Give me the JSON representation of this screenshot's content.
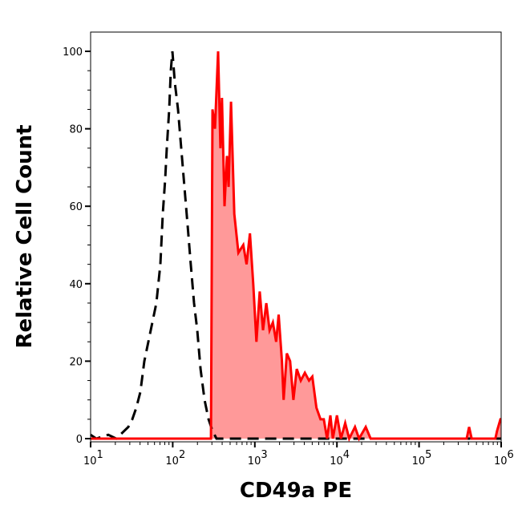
{
  "chart_data": {
    "type": "area",
    "xlabel": "CD49a PE",
    "ylabel": "Relative Cell Count",
    "x_scale": "log",
    "xlim": [
      10,
      1000000
    ],
    "ylim": [
      0,
      105
    ],
    "x_ticks": [
      {
        "value": 10,
        "base": "10",
        "exp": "1"
      },
      {
        "value": 100,
        "base": "10",
        "exp": "2"
      },
      {
        "value": 1000,
        "base": "10",
        "exp": "3"
      },
      {
        "value": 10000,
        "base": "10",
        "exp": "4"
      },
      {
        "value": 100000,
        "base": "10",
        "exp": "5"
      },
      {
        "value": 1000000,
        "base": "10",
        "exp": "6"
      }
    ],
    "y_ticks": [
      "0",
      "20",
      "40",
      "60",
      "80",
      "100"
    ],
    "grid": false,
    "series": [
      {
        "style": "dashed",
        "color": "#000000",
        "fill": "none",
        "points": [
          [
            10,
            1
          ],
          [
            11.7,
            0
          ],
          [
            16.4,
            1
          ],
          [
            20.5,
            0
          ],
          [
            23,
            1
          ],
          [
            28.8,
            3
          ],
          [
            32.2,
            5
          ],
          [
            36,
            8
          ],
          [
            40.3,
            12
          ],
          [
            45.1,
            20
          ],
          [
            50.5,
            25
          ],
          [
            56.5,
            30
          ],
          [
            63.2,
            35
          ],
          [
            70.8,
            45
          ],
          [
            75.7,
            58
          ],
          [
            81,
            67
          ],
          [
            84.7,
            75
          ],
          [
            90.6,
            85
          ],
          [
            94.8,
            95
          ],
          [
            99,
            100
          ],
          [
            106,
            92
          ],
          [
            116,
            85
          ],
          [
            127,
            75
          ],
          [
            139,
            65
          ],
          [
            152,
            55
          ],
          [
            166,
            45
          ],
          [
            182,
            35
          ],
          [
            199,
            28
          ],
          [
            218,
            18
          ],
          [
            244,
            10
          ],
          [
            273,
            5
          ],
          [
            305,
            2
          ],
          [
            341,
            0
          ],
          [
            1000000,
            0
          ]
        ]
      },
      {
        "style": "solid",
        "color": "#ff0000",
        "fill": "#ff9999",
        "points": [
          [
            10,
            0
          ],
          [
            292,
            0
          ],
          [
            305,
            85
          ],
          [
            327,
            80
          ],
          [
            357,
            100
          ],
          [
            381,
            75
          ],
          [
            398,
            88
          ],
          [
            427,
            60
          ],
          [
            457,
            73
          ],
          [
            479,
            65
          ],
          [
            513,
            87
          ],
          [
            562,
            58
          ],
          [
            631,
            48
          ],
          [
            724,
            50
          ],
          [
            794,
            45
          ],
          [
            871,
            53
          ],
          [
            955,
            40
          ],
          [
            1047,
            25
          ],
          [
            1148,
            38
          ],
          [
            1259,
            28
          ],
          [
            1380,
            35
          ],
          [
            1514,
            28
          ],
          [
            1660,
            30
          ],
          [
            1820,
            25
          ],
          [
            1950,
            32
          ],
          [
            2140,
            20
          ],
          [
            2240,
            10
          ],
          [
            2455,
            22
          ],
          [
            2690,
            20
          ],
          [
            2950,
            10
          ],
          [
            3240,
            18
          ],
          [
            3630,
            15
          ],
          [
            4070,
            17
          ],
          [
            4570,
            15
          ],
          [
            5010,
            16
          ],
          [
            5620,
            8
          ],
          [
            6310,
            5
          ],
          [
            6920,
            5
          ],
          [
            7590,
            0
          ],
          [
            8320,
            6
          ],
          [
            8910,
            0
          ],
          [
            10000,
            6
          ],
          [
            11200,
            0
          ],
          [
            12600,
            4
          ],
          [
            14100,
            0
          ],
          [
            16600,
            3
          ],
          [
            18600,
            0
          ],
          [
            22400,
            3
          ],
          [
            25700,
            0
          ],
          [
            380000,
            0
          ],
          [
            407000,
            3
          ],
          [
            437000,
            0
          ],
          [
            850000,
            0
          ],
          [
            891000,
            2
          ],
          [
            980000,
            5
          ],
          [
            1000000,
            5
          ]
        ]
      }
    ]
  }
}
